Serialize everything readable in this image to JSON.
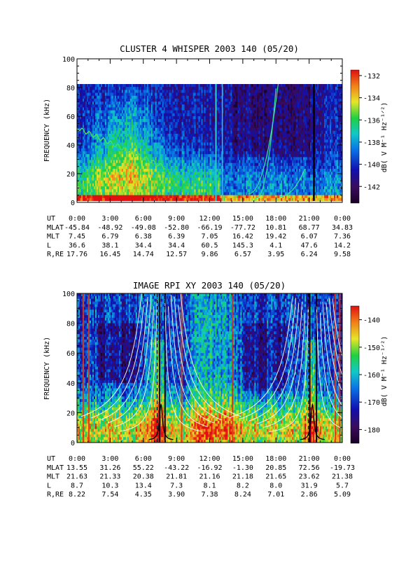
{
  "chart_data": [
    {
      "type": "heatmap",
      "title": "CLUSTER 4 WHISPER 2003 140 (05/20)",
      "ylabel": "FREQUENCY (kHz)",
      "ylim": [
        0,
        100
      ],
      "y_ticks": [
        "0",
        "20",
        "40",
        "60",
        "80",
        "100"
      ],
      "data_ylim": [
        0,
        80
      ],
      "colorbar": {
        "label": "dB( V M⁻¹ Hz⁻¹ᐟ²)",
        "range": [
          -143.5,
          -131.5
        ],
        "ticks": [
          "-132",
          "-134",
          "-136",
          "-138",
          "-140",
          "-142"
        ]
      },
      "ephemeris": {
        "row_labels": [
          "UT",
          "MLAT",
          "MLT",
          "L",
          "R,RE"
        ],
        "columns": [
          [
            "0:00",
            "-45.84",
            "7.45",
            "36.6",
            "17.76"
          ],
          [
            "3:00",
            "-48.92",
            "6.79",
            "38.1",
            "16.45"
          ],
          [
            "6:00",
            "-49.08",
            "6.38",
            "34.4",
            "14.74"
          ],
          [
            "9:00",
            "-52.80",
            "6.39",
            "34.4",
            "12.57"
          ],
          [
            "12:00",
            "-66.19",
            "7.05",
            "60.5",
            "9.86"
          ],
          [
            "15:00",
            "-77.72",
            "16.42",
            "145.3",
            "6.57"
          ],
          [
            "18:00",
            "10.81",
            "19.42",
            "4.1",
            "3.95"
          ],
          [
            "21:00",
            "68.77",
            "6.07",
            "47.6",
            "6.24"
          ],
          [
            "0:00",
            "34.83",
            "7.36",
            "14.2",
            "9.58"
          ]
        ]
      }
    },
    {
      "type": "heatmap",
      "title": "IMAGE RPI XY 2003 140 (05/20)",
      "ylabel": "FREQUENCY (kHz)",
      "ylim": [
        0,
        100
      ],
      "y_ticks": [
        "0",
        "20",
        "40",
        "60",
        "80",
        "100"
      ],
      "colorbar": {
        "label": "dB( V M⁻¹ Hz⁻¹ᐟ²)",
        "range": [
          -185,
          -135
        ],
        "ticks": [
          "-140",
          "-150",
          "-160",
          "-170",
          "-180"
        ]
      },
      "ephemeris": {
        "row_labels": [
          "UT",
          "MLAT",
          "MLT",
          "L",
          "R,RE"
        ],
        "columns": [
          [
            "0:00",
            "13.55",
            "21.63",
            "8.7",
            "8.22"
          ],
          [
            "3:00",
            "31.26",
            "21.33",
            "10.3",
            "7.54"
          ],
          [
            "6:00",
            "55.22",
            "20.38",
            "13.4",
            "4.35"
          ],
          [
            "9:00",
            "-43.22",
            "21.81",
            "7.3",
            "3.90"
          ],
          [
            "12:00",
            "-16.92",
            "21.16",
            "8.1",
            "7.38"
          ],
          [
            "15:00",
            "-1.30",
            "21.18",
            "8.2",
            "8.24"
          ],
          [
            "18:00",
            "20.85",
            "21.65",
            "8.0",
            "7.01"
          ],
          [
            "21:00",
            "72.56",
            "23.62",
            "31.9",
            "2.86"
          ],
          [
            "0:00",
            "-19.73",
            "21.38",
            "5.7",
            "5.09"
          ]
        ]
      }
    }
  ]
}
